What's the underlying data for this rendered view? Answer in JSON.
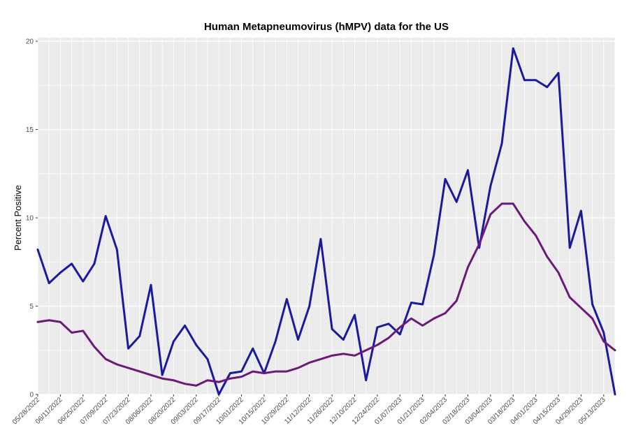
{
  "chart_data": {
    "type": "line",
    "title": "Human Metapneumovirus (hMPV) data for the US",
    "xlabel": "",
    "ylabel": "Percent Positive",
    "ylim": [
      0,
      20.2
    ],
    "yticks": [
      0,
      5,
      10,
      15,
      20
    ],
    "x_tick_labels": [
      "05/28/2022",
      "06/11/2022",
      "06/25/2022",
      "07/09/2022",
      "07/23/2022",
      "08/06/2022",
      "08/20/2022",
      "09/03/2022",
      "09/17/2022",
      "10/01/2022",
      "10/15/2022",
      "10/29/2022",
      "11/12/2022",
      "11/26/2022",
      "12/10/2022",
      "12/24/2022",
      "01/07/2023",
      "01/21/2023",
      "02/04/2023",
      "02/18/2023",
      "03/04/2023",
      "03/18/2023",
      "04/01/2023",
      "04/15/2023",
      "04/29/2023",
      "05/13/2023"
    ],
    "x": [
      "05/28/2022",
      "06/04/2022",
      "06/11/2022",
      "06/18/2022",
      "06/25/2022",
      "07/02/2022",
      "07/09/2022",
      "07/16/2022",
      "07/23/2022",
      "07/30/2022",
      "08/06/2022",
      "08/13/2022",
      "08/20/2022",
      "08/27/2022",
      "09/03/2022",
      "09/10/2022",
      "09/17/2022",
      "09/24/2022",
      "10/01/2022",
      "10/08/2022",
      "10/15/2022",
      "10/22/2022",
      "10/29/2022",
      "11/05/2022",
      "11/12/2022",
      "11/19/2022",
      "11/26/2022",
      "12/03/2022",
      "12/10/2022",
      "12/17/2022",
      "12/24/2022",
      "12/31/2022",
      "01/07/2023",
      "01/14/2023",
      "01/21/2023",
      "01/28/2023",
      "02/04/2023",
      "02/11/2023",
      "02/18/2023",
      "02/25/2023",
      "03/04/2023",
      "03/11/2023",
      "03/18/2023",
      "03/25/2023",
      "04/01/2023",
      "04/08/2023",
      "04/15/2023",
      "04/22/2023",
      "04/29/2023",
      "05/06/2023",
      "05/13/2023",
      "05/20/2023"
    ],
    "grid": true,
    "legend": "none",
    "background": "#ebebeb",
    "series": [
      {
        "color": "#1a1a9c",
        "values": [
          8.2,
          6.3,
          6.9,
          7.4,
          6.4,
          7.4,
          10.1,
          8.2,
          2.6,
          3.3,
          6.2,
          1.1,
          3.0,
          3.9,
          2.8,
          2.0,
          0.0,
          1.2,
          1.3,
          2.6,
          1.2,
          3.0,
          5.4,
          3.1,
          5.0,
          8.8,
          3.7,
          3.1,
          4.5,
          0.8,
          3.8,
          4.0,
          3.4,
          5.2,
          5.1,
          7.9,
          12.2,
          10.9,
          12.7,
          8.3,
          11.8,
          14.2,
          19.6,
          17.8,
          17.8,
          17.4,
          18.2,
          8.3,
          10.4,
          5.1,
          3.5,
          0.0
        ]
      },
      {
        "color": "#6b1a7a",
        "values": [
          4.1,
          4.2,
          4.1,
          3.5,
          3.6,
          2.7,
          2.0,
          1.7,
          1.5,
          1.3,
          1.1,
          0.9,
          0.8,
          0.6,
          0.5,
          0.8,
          0.7,
          0.9,
          1.0,
          1.3,
          1.2,
          1.3,
          1.3,
          1.5,
          1.8,
          2.0,
          2.2,
          2.3,
          2.2,
          2.5,
          2.8,
          3.2,
          3.8,
          4.3,
          3.9,
          4.3,
          4.6,
          5.3,
          7.2,
          8.5,
          10.2,
          10.8,
          10.8,
          9.8,
          9.0,
          7.8,
          6.9,
          5.5,
          4.9,
          4.3,
          3.0,
          2.5
        ]
      }
    ]
  }
}
